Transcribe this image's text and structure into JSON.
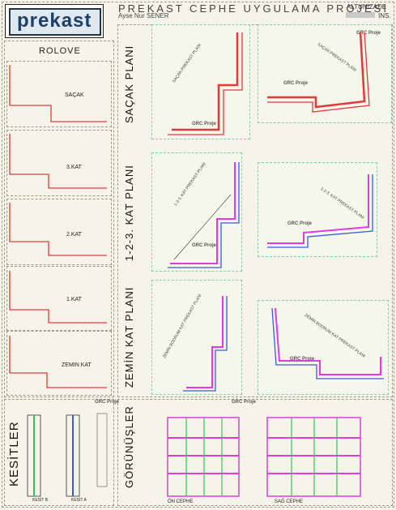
{
  "header": {
    "logo_text": "prekast",
    "title": "PREKAST CEPHE UYGULAMA PROJESI",
    "author": "Ayse Nur SENER",
    "altunizade": "ALTUNIZADE",
    "ins": "INS."
  },
  "rolove": {
    "title": "ROLOVE",
    "levels": [
      "SAÇAK",
      "3.KAT",
      "2.KAT",
      "1.KAT",
      "ZEMIN KAT"
    ]
  },
  "sections": {
    "sacak_plani": "SAÇAK PLANI",
    "kat_plani": "1-2-3. KAT PLANI",
    "zemin_plani": "ZEMİN KAT PLANI",
    "kesitler": "KESİTLER",
    "gorunusler": "GÖRÜNÜŞLER"
  },
  "plans": {
    "sacak_left": "SAÇAK PREKAST PLANI",
    "sacak_right": "SAÇAK PREKAST PLANI",
    "kat_left": "1-2-3. KAT PREKAST PLANI",
    "kat_right": "1-2-3. KAT PREKAST PLANI",
    "zemin_left": "ZEMİN BODRUM KAT PREKAST PLANI",
    "zemin_right": "ZEMİN BODRUM KAT PREKAST PLANI"
  },
  "badge": "GRC Proje",
  "kesit_b": "KESİT B",
  "kesit_a": "KESİT A",
  "on_cephe": "ÖN CEPHE",
  "sag_cephe": "SAĞ CEPHE",
  "colors": {
    "red": "#e03a3a",
    "magenta": "#e03ae0",
    "green": "#3ac060",
    "blue": "#3a5ae0"
  }
}
